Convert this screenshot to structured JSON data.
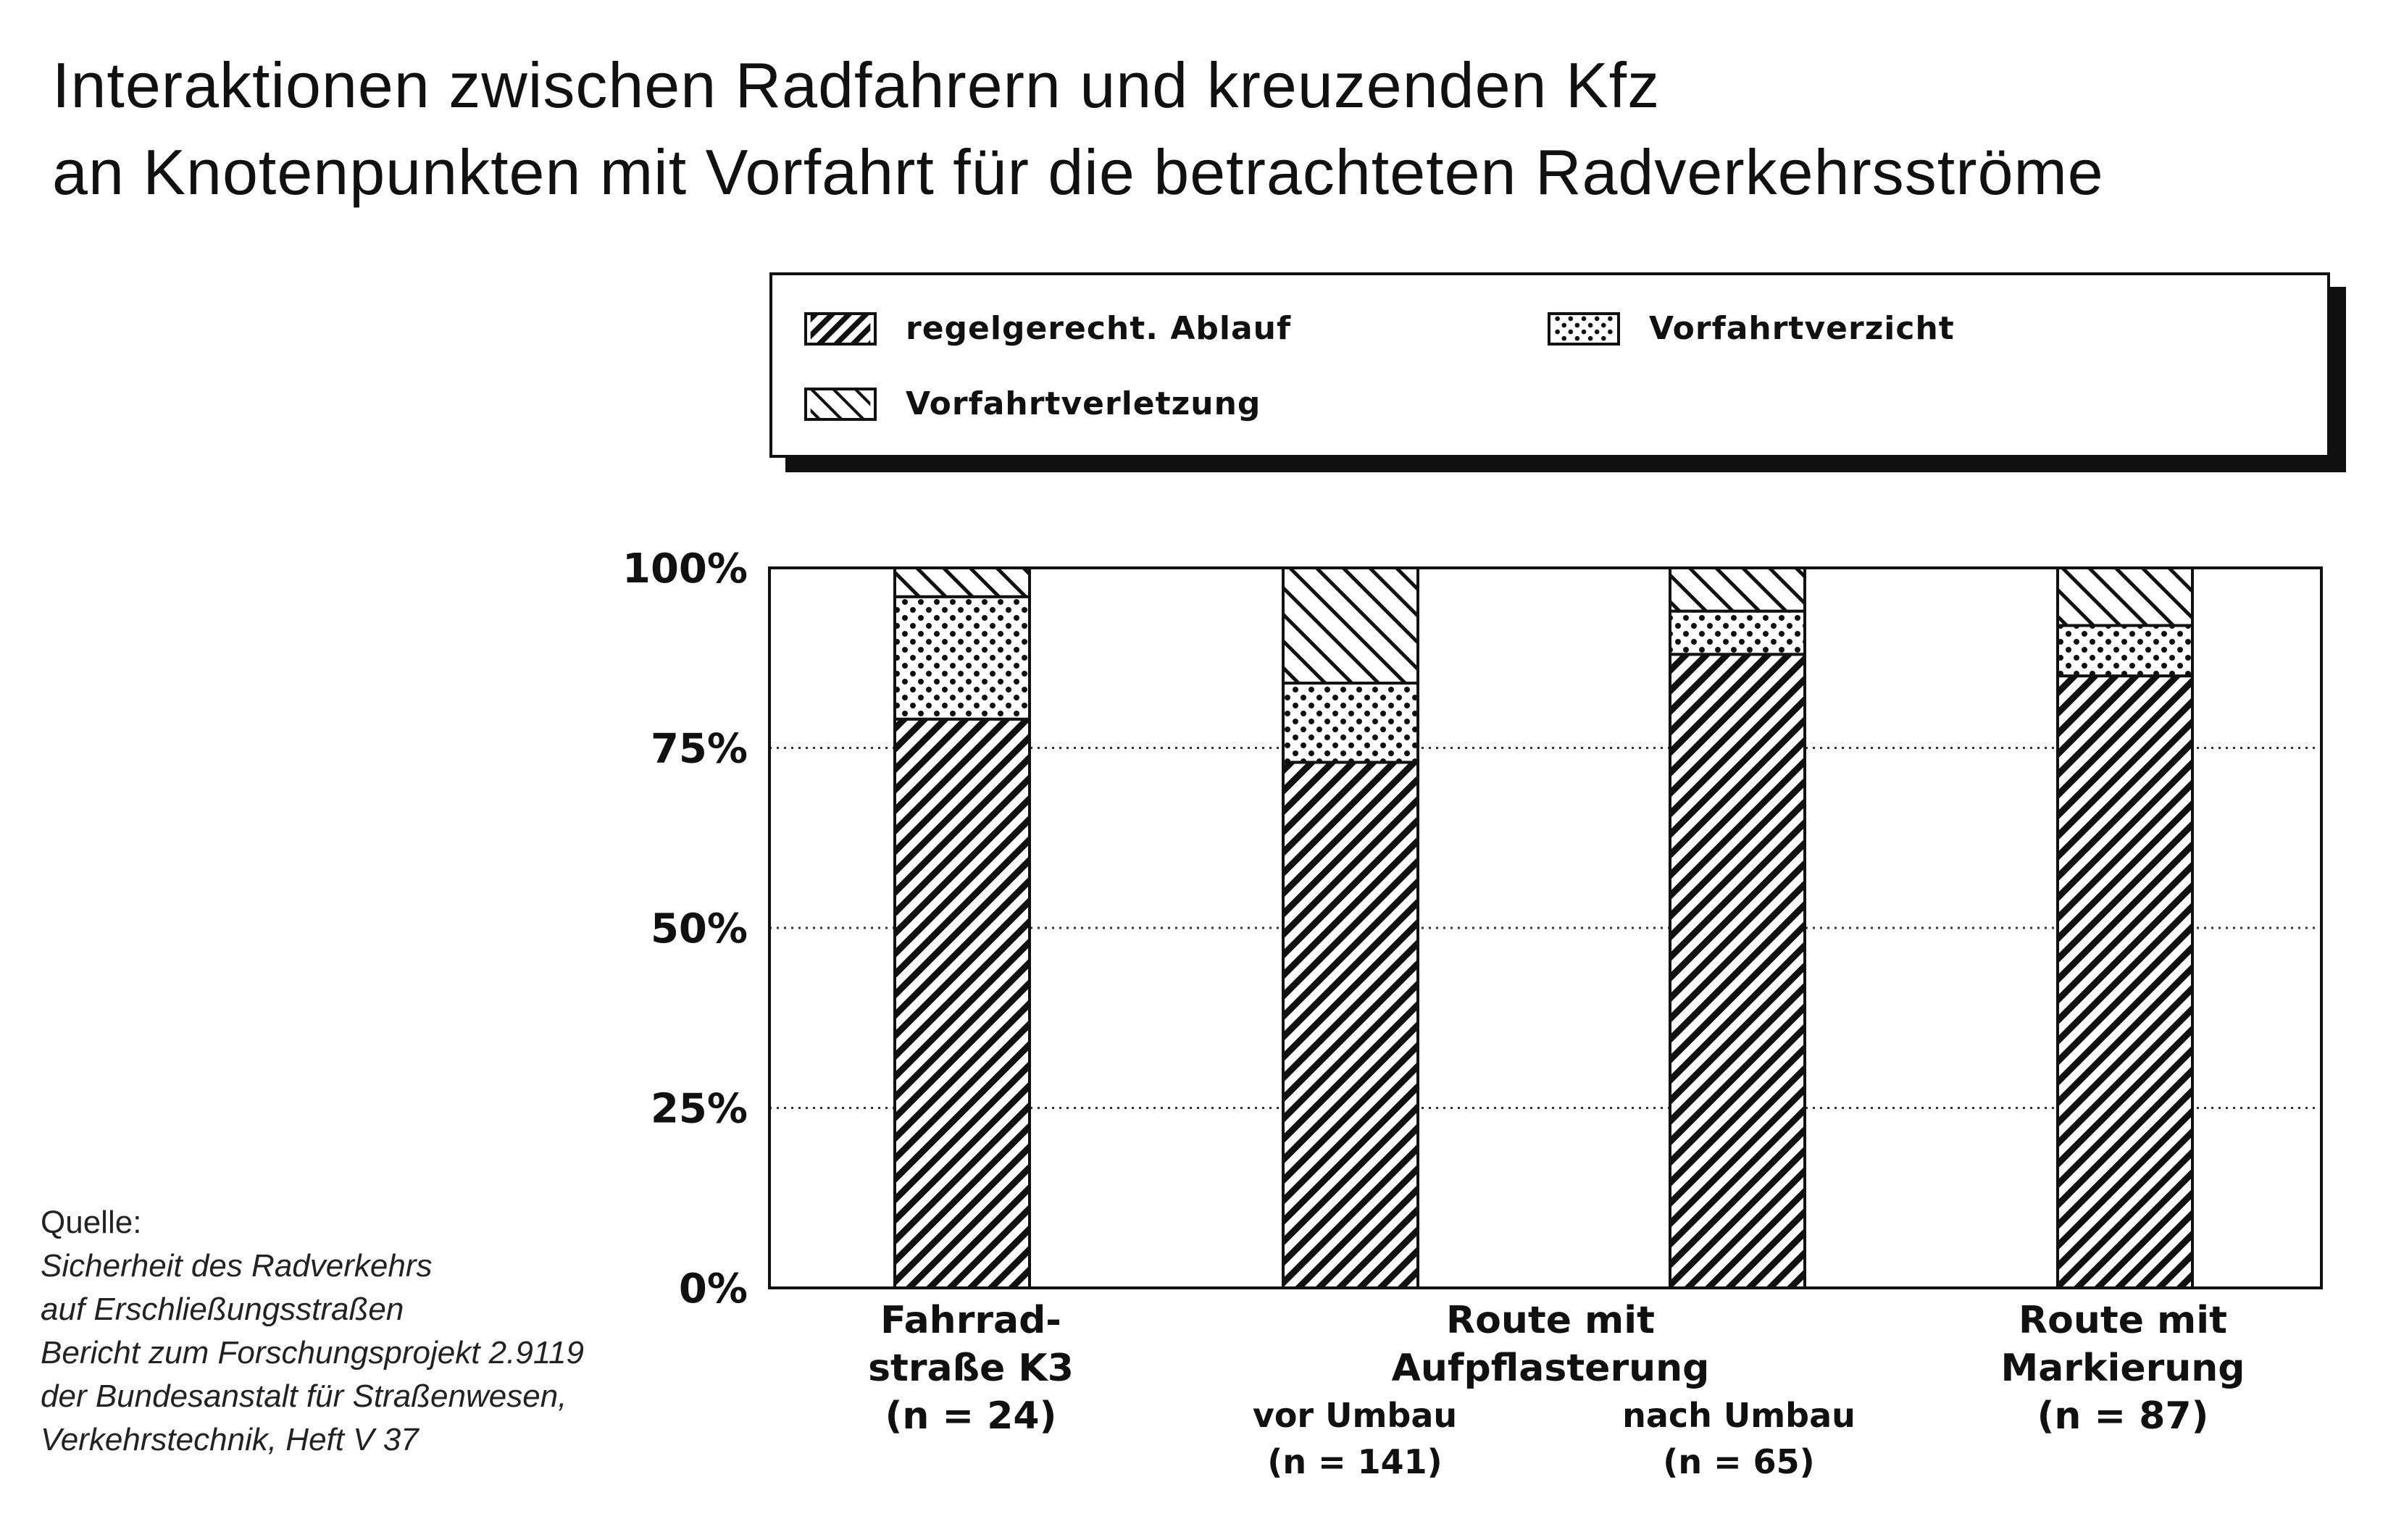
{
  "title": {
    "line1": "Interaktionen zwischen Radfahrern und kreuzenden Kfz",
    "line2": "an Knotenpunkten mit Vorfahrt für die betrachteten Radverkehrsströme"
  },
  "legend": [
    {
      "label": "regelgerecht. Ablauf",
      "pattern": "diag-up"
    },
    {
      "label": "Vorfahrtverzicht",
      "pattern": "dots"
    },
    {
      "label": "Vorfahrtverletzung",
      "pattern": "diag-down"
    }
  ],
  "categories": {
    "c1": {
      "line1": "Fahrrad-",
      "line2": "straße K3",
      "line3": "(n = 24)"
    },
    "c2": {
      "line1": "Route mit",
      "line2": "Aufpflasterung",
      "sub1_l1": "vor Umbau",
      "sub1_l2": "(n = 141)",
      "sub2_l1": "nach Umbau",
      "sub2_l2": "(n = 65)"
    },
    "c3": {
      "line1": "Route mit",
      "line2": "Markierung",
      "line3": "(n = 87)"
    }
  },
  "source": {
    "head": "Quelle:",
    "lines": [
      "Sicherheit des Radverkehrs",
      "auf Erschließungsstraßen",
      "Bericht zum Forschungsprojekt 2.9119",
      "der Bundesanstalt für Straßenwesen,",
      "Verkehrstechnik, Heft V 37"
    ]
  },
  "chart_data": {
    "type": "bar",
    "stacked": true,
    "categories": [
      "Fahrradstraße K3 (n = 24)",
      "Aufpflasterung vor Umbau (n = 141)",
      "Aufpflasterung nach Umbau (n = 65)",
      "Markierung (n = 87)"
    ],
    "series": [
      {
        "name": "regelgerecht. Ablauf",
        "values": [
          79,
          73,
          88,
          85
        ]
      },
      {
        "name": "Vorfahrtverzicht",
        "values": [
          17,
          11,
          6,
          7
        ]
      },
      {
        "name": "Vorfahrtverletzung",
        "values": [
          4,
          16,
          6,
          8
        ]
      }
    ],
    "ylim": [
      0,
      100
    ],
    "yticks": [
      "0%",
      "25%",
      "50%",
      "75%",
      "100%"
    ],
    "grid": true,
    "legend_position": "top"
  }
}
